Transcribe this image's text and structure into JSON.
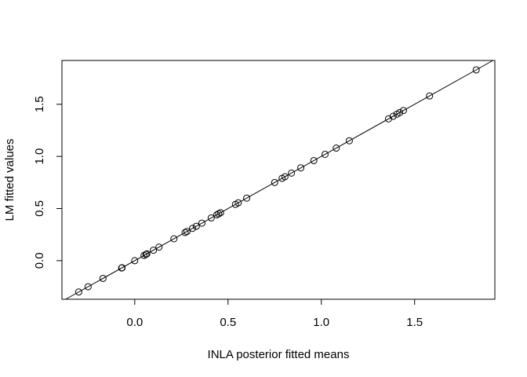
{
  "chart_data": {
    "type": "scatter",
    "title": "",
    "xlabel": "INLA posterior fitted means",
    "ylabel": "LM fitted values",
    "xlim": [
      -0.39,
      1.93
    ],
    "ylim": [
      -0.37,
      1.92
    ],
    "x_ticks": [
      0.0,
      0.5,
      1.0,
      1.5
    ],
    "x_tick_labels": [
      "0.0",
      "0.5",
      "1.0",
      "1.5"
    ],
    "y_ticks": [
      0.0,
      0.5,
      1.0,
      1.5
    ],
    "y_tick_labels": [
      "0.0",
      "0.5",
      "1.0",
      "1.5"
    ],
    "grid": false,
    "reference_line": {
      "intercept": 0,
      "slope": 1
    },
    "marker": "open-circle",
    "colors": {
      "points": "#000000",
      "line": "#000000",
      "axes": "#000000"
    },
    "x": [
      -0.3,
      -0.25,
      -0.17,
      -0.07,
      -0.068,
      0.0,
      0.05,
      0.06,
      0.065,
      0.1,
      0.13,
      0.21,
      0.27,
      0.28,
      0.31,
      0.33,
      0.36,
      0.41,
      0.44,
      0.45,
      0.46,
      0.54,
      0.555,
      0.6,
      0.75,
      0.79,
      0.805,
      0.84,
      0.89,
      0.96,
      1.02,
      1.08,
      1.15,
      1.36,
      1.385,
      1.405,
      1.42,
      1.44,
      1.58,
      1.83
    ],
    "y": [
      -0.3,
      -0.25,
      -0.17,
      -0.07,
      -0.068,
      0.0,
      0.05,
      0.06,
      0.065,
      0.1,
      0.13,
      0.21,
      0.27,
      0.28,
      0.31,
      0.33,
      0.36,
      0.41,
      0.44,
      0.45,
      0.46,
      0.54,
      0.555,
      0.6,
      0.75,
      0.79,
      0.805,
      0.84,
      0.89,
      0.96,
      1.02,
      1.08,
      1.15,
      1.36,
      1.385,
      1.405,
      1.42,
      1.44,
      1.58,
      1.83
    ]
  }
}
